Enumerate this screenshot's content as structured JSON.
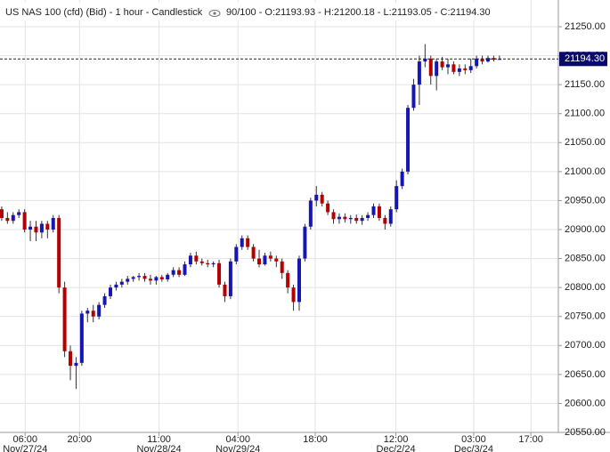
{
  "chart_data": {
    "type": "candlestick",
    "title": "US NAS 100 (cfd) (Bid) - 1 hour - Candlestick",
    "subtitle": "90/100 - O:21193.93 - H:21200.18 - L:21193.05 - C:21194.30",
    "up_color": "#1616b4",
    "down_color": "#b40000",
    "grid": true,
    "last_price": {
      "value": 21194.3,
      "label": "21194.30"
    },
    "xlim": [
      -0.3,
      97.3
    ],
    "xticks": [
      {
        "value": 4.1,
        "label": "06:00",
        "date": "Nov/27/24"
      },
      {
        "value": 13.6,
        "label": "20:00"
      },
      {
        "value": 27.5,
        "label": "11:00",
        "date": "Nov/28/24"
      },
      {
        "value": 41.3,
        "label": "04:00",
        "date": "Nov/29/24"
      },
      {
        "value": 54.8,
        "label": "18:00"
      },
      {
        "value": 68.9,
        "label": "12:00",
        "date": "Dec/2/24"
      },
      {
        "value": 82.5,
        "label": "03:00",
        "date": "Dec/3/24"
      },
      {
        "value": 92.5,
        "label": "17:00"
      }
    ],
    "ylim": [
      20550,
      21250
    ],
    "yticks": [
      {
        "value": 20550,
        "label": "20550.00"
      },
      {
        "value": 20600,
        "label": "20600.00"
      },
      {
        "value": 20650,
        "label": "20650.00"
      },
      {
        "value": 20700,
        "label": "20700.00"
      },
      {
        "value": 20750,
        "label": "20750.00"
      },
      {
        "value": 20800,
        "label": "20800.00"
      },
      {
        "value": 20850,
        "label": "20850.00"
      },
      {
        "value": 20900,
        "label": "20900.00"
      },
      {
        "value": 20950,
        "label": "20950.00"
      },
      {
        "value": 21000,
        "label": "21000.00"
      },
      {
        "value": 21050,
        "label": "21050.00"
      },
      {
        "value": 21100,
        "label": "21100.00"
      },
      {
        "value": 21150,
        "label": "21150.00"
      },
      {
        "value": 21200,
        "label": "21200.00"
      },
      {
        "value": 21250,
        "label": "21250.00"
      }
    ],
    "open": [
      20935,
      20920,
      20915,
      20925,
      20930,
      20900,
      20905,
      20895,
      20910,
      20900,
      20920,
      20800,
      20690,
      20665,
      20670,
      20755,
      20760,
      20750,
      20770,
      20785,
      20800,
      20805,
      20810,
      20815,
      20818,
      20820,
      20815,
      20812,
      20818,
      20814,
      20822,
      20830,
      20822,
      20840,
      20855,
      20845,
      20842,
      20840,
      20842,
      20805,
      20785,
      20845,
      20870,
      20885,
      20870,
      20850,
      20840,
      20855,
      20850,
      20845,
      20825,
      20800,
      20775,
      20850,
      20905,
      20950,
      20960,
      20945,
      20930,
      20918,
      20922,
      20918,
      20920,
      20915,
      20920,
      20925,
      20940,
      20920,
      20910,
      20935,
      20975,
      21000,
      21110,
      21150,
      21190,
      21195,
      21165,
      21190,
      21180,
      21185,
      21172,
      21178,
      21175,
      21182,
      21195,
      21190,
      21196,
      21193.93
    ],
    "high": [
      20940,
      20930,
      20930,
      20935,
      20935,
      20915,
      20915,
      20915,
      20915,
      20925,
      20925,
      20810,
      20700,
      20680,
      20760,
      20765,
      20770,
      20775,
      20790,
      20805,
      20810,
      20815,
      20820,
      20820,
      20825,
      20825,
      20822,
      20820,
      20822,
      20825,
      20835,
      20835,
      20845,
      20860,
      20862,
      20850,
      20848,
      20845,
      20848,
      20810,
      20850,
      20875,
      20890,
      20890,
      20875,
      20865,
      20860,
      20862,
      20855,
      20850,
      20830,
      20805,
      20855,
      20910,
      20955,
      20975,
      20965,
      20950,
      20935,
      20928,
      20928,
      20925,
      20926,
      20925,
      20930,
      20945,
      20945,
      20925,
      20940,
      20985,
      21005,
      21115,
      21160,
      21200,
      21220,
      21200,
      21195,
      21198,
      21195,
      21190,
      21185,
      21185,
      21195,
      21200,
      21200,
      21200,
      21200,
      21200.18
    ],
    "low": [
      20915,
      20910,
      20910,
      20920,
      20895,
      20880,
      20880,
      20885,
      20885,
      20895,
      20790,
      20680,
      20640,
      20625,
      20665,
      20740,
      20740,
      20745,
      20765,
      20780,
      20795,
      20800,
      20805,
      20810,
      20812,
      20810,
      20805,
      20805,
      20810,
      20810,
      20818,
      20818,
      20820,
      20835,
      20840,
      20838,
      20835,
      20835,
      20800,
      20775,
      20780,
      20840,
      20865,
      20865,
      20845,
      20835,
      20838,
      20845,
      20835,
      20815,
      20790,
      20760,
      20760,
      20845,
      20900,
      20940,
      20940,
      20925,
      20910,
      20910,
      20912,
      20910,
      20910,
      20908,
      20915,
      20920,
      20915,
      20900,
      20905,
      20930,
      20970,
      20995,
      21105,
      21115,
      21180,
      21150,
      21140,
      21175,
      21168,
      21168,
      21165,
      21168,
      21170,
      21178,
      21185,
      21188,
      21190,
      21193.05
    ],
    "close": [
      20920,
      20915,
      20925,
      20930,
      20900,
      20905,
      20895,
      20910,
      20900,
      20920,
      20800,
      20690,
      20665,
      20670,
      20755,
      20760,
      20750,
      20770,
      20785,
      20800,
      20805,
      20810,
      20815,
      20818,
      20820,
      20815,
      20812,
      20818,
      20814,
      20822,
      20830,
      20822,
      20840,
      20855,
      20845,
      20842,
      20840,
      20842,
      20805,
      20785,
      20845,
      20870,
      20885,
      20870,
      20850,
      20840,
      20855,
      20850,
      20845,
      20825,
      20800,
      20775,
      20850,
      20905,
      20950,
      20960,
      20945,
      20930,
      20918,
      20922,
      20918,
      20920,
      20915,
      20920,
      20925,
      20940,
      20920,
      20910,
      20935,
      20975,
      21000,
      21110,
      21150,
      21190,
      21195,
      21165,
      21190,
      21180,
      21185,
      21172,
      21178,
      21175,
      21182,
      21195,
      21190,
      21196,
      21193,
      21194.3
    ]
  }
}
